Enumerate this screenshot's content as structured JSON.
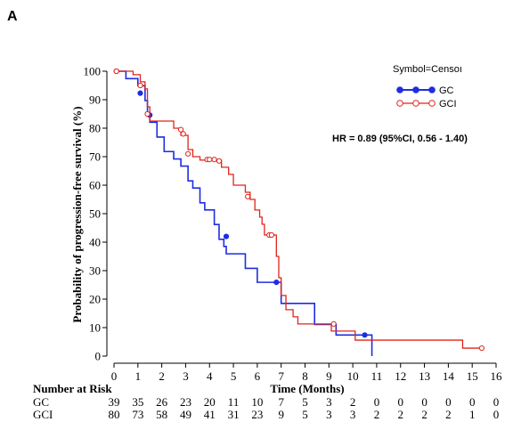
{
  "panel_label": "A",
  "legend_title": "Symbol=Censoı",
  "hr_text": "HR = 0.89 (95%CI, 0.56 - 1.40)",
  "risk_header": "Number at Risk",
  "colors": {
    "GC": "#1f2de0",
    "GCI": "#e0241a"
  },
  "chart_data": {
    "type": "line",
    "xlabel": "Time (Months)",
    "ylabel": "Probability of progression-free survival (%)",
    "xlim": [
      0,
      16
    ],
    "ylim": [
      0,
      100
    ],
    "xticks": [
      0,
      1,
      2,
      3,
      4,
      5,
      6,
      7,
      8,
      9,
      10,
      11,
      12,
      13,
      14,
      15,
      16
    ],
    "yticks": [
      0,
      10,
      20,
      30,
      40,
      50,
      60,
      70,
      80,
      90,
      100
    ],
    "grid": false,
    "legend": "top-right",
    "series": [
      {
        "name": "GC",
        "step": [
          [
            0,
            100
          ],
          [
            0.5,
            97.4
          ],
          [
            1.0,
            94.9
          ],
          [
            1.3,
            89.7
          ],
          [
            1.4,
            84.6
          ],
          [
            1.5,
            82.1
          ],
          [
            1.8,
            76.9
          ],
          [
            2.1,
            71.8
          ],
          [
            2.2,
            71.8
          ],
          [
            2.5,
            69.2
          ],
          [
            2.8,
            66.7
          ],
          [
            3.1,
            61.5
          ],
          [
            3.3,
            59.0
          ],
          [
            3.6,
            53.8
          ],
          [
            3.8,
            51.3
          ],
          [
            4.2,
            46.2
          ],
          [
            4.4,
            41.0
          ],
          [
            4.6,
            38.5
          ],
          [
            4.7,
            35.9
          ],
          [
            5.0,
            35.9
          ],
          [
            5.5,
            30.8
          ],
          [
            6.0,
            25.9
          ],
          [
            6.9,
            25.9
          ],
          [
            7.0,
            18.5
          ],
          [
            8.0,
            18.5
          ],
          [
            8.4,
            11.1
          ],
          [
            9.0,
            11.1
          ],
          [
            9.3,
            7.4
          ],
          [
            10.8,
            7.4
          ],
          [
            10.8,
            0
          ]
        ],
        "censored": [
          [
            0.1,
            100
          ],
          [
            1.1,
            92.3
          ],
          [
            1.5,
            84.6
          ],
          [
            4.7,
            42.0
          ],
          [
            6.8,
            25.9
          ],
          [
            10.5,
            7.4
          ]
        ]
      },
      {
        "name": "GCI",
        "step": [
          [
            0,
            100
          ],
          [
            0.8,
            98.8
          ],
          [
            1.1,
            96.3
          ],
          [
            1.3,
            93.8
          ],
          [
            1.4,
            87.5
          ],
          [
            1.5,
            82.5
          ],
          [
            2.5,
            80.0
          ],
          [
            2.8,
            77.5
          ],
          [
            3.1,
            72.5
          ],
          [
            3.3,
            70.0
          ],
          [
            3.6,
            68.8
          ],
          [
            4.4,
            68.8
          ],
          [
            4.5,
            66.3
          ],
          [
            4.8,
            63.8
          ],
          [
            5.0,
            60.0
          ],
          [
            5.5,
            57.5
          ],
          [
            5.7,
            55.0
          ],
          [
            5.9,
            51.3
          ],
          [
            6.1,
            48.8
          ],
          [
            6.2,
            46.3
          ],
          [
            6.3,
            42.5
          ],
          [
            6.7,
            42.5
          ],
          [
            6.8,
            35.0
          ],
          [
            6.9,
            27.5
          ],
          [
            7.0,
            21.3
          ],
          [
            7.2,
            16.3
          ],
          [
            7.5,
            13.8
          ],
          [
            7.7,
            11.3
          ],
          [
            9.0,
            11.3
          ],
          [
            9.1,
            8.8
          ],
          [
            10.0,
            8.8
          ],
          [
            10.1,
            5.6
          ],
          [
            14.5,
            5.6
          ],
          [
            14.6,
            2.8
          ],
          [
            15.4,
            2.8
          ]
        ],
        "censored": [
          [
            0.1,
            100
          ],
          [
            1.1,
            95.0
          ],
          [
            1.4,
            85.0
          ],
          [
            2.8,
            79.5
          ],
          [
            2.9,
            78.0
          ],
          [
            3.1,
            71.0
          ],
          [
            3.9,
            69.0
          ],
          [
            4.0,
            69.0
          ],
          [
            4.2,
            69.0
          ],
          [
            4.4,
            68.5
          ],
          [
            5.6,
            56.0
          ],
          [
            6.5,
            42.5
          ],
          [
            6.6,
            42.5
          ],
          [
            9.2,
            11.3
          ],
          [
            15.4,
            2.8
          ]
        ]
      }
    ],
    "risk_table": {
      "times": [
        0,
        1,
        2,
        3,
        4,
        5,
        6,
        7,
        8,
        9,
        10,
        11,
        12,
        13,
        14,
        15,
        16
      ],
      "rows": [
        {
          "label": "GC",
          "values": [
            39,
            35,
            26,
            23,
            20,
            11,
            10,
            7,
            5,
            3,
            2,
            0,
            0,
            0,
            0,
            0,
            0
          ]
        },
        {
          "label": "GCI",
          "values": [
            80,
            73,
            58,
            49,
            41,
            31,
            23,
            9,
            5,
            3,
            3,
            2,
            2,
            2,
            2,
            1,
            0
          ]
        }
      ]
    }
  }
}
